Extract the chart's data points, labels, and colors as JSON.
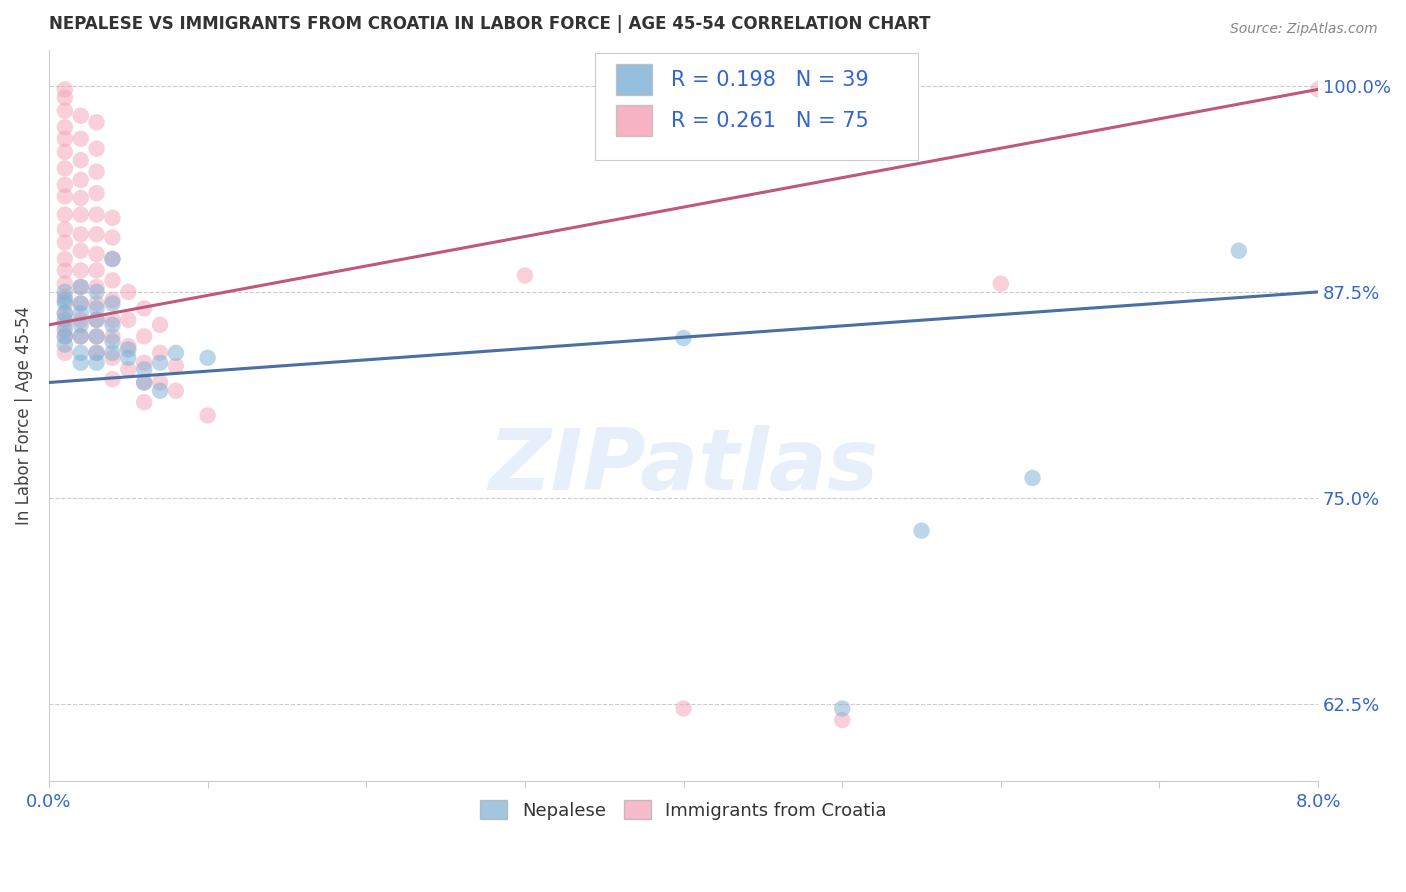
{
  "title": "NEPALESE VS IMMIGRANTS FROM CROATIA IN LABOR FORCE | AGE 45-54 CORRELATION CHART",
  "source": "Source: ZipAtlas.com",
  "ylabel": "In Labor Force | Age 45-54",
  "watermark": "ZIPatlas",
  "legend_blue_r": "0.198",
  "legend_blue_n": "39",
  "legend_pink_r": "0.261",
  "legend_pink_n": "75",
  "legend_label1": "Nepalese",
  "legend_label2": "Immigrants from Croatia",
  "blue_color": "#7BAFD4",
  "pink_color": "#F4A0B5",
  "blue_line_color": "#4A6FA5",
  "pink_line_color": "#C05878",
  "blue_scatter": [
    [
      0.001,
      0.87
    ],
    [
      0.001,
      0.875
    ],
    [
      0.001,
      0.868
    ],
    [
      0.001,
      0.862
    ],
    [
      0.001,
      0.858
    ],
    [
      0.001,
      0.852
    ],
    [
      0.001,
      0.848
    ],
    [
      0.001,
      0.843
    ],
    [
      0.002,
      0.878
    ],
    [
      0.002,
      0.868
    ],
    [
      0.002,
      0.862
    ],
    [
      0.002,
      0.855
    ],
    [
      0.002,
      0.848
    ],
    [
      0.002,
      0.838
    ],
    [
      0.002,
      0.832
    ],
    [
      0.003,
      0.875
    ],
    [
      0.003,
      0.865
    ],
    [
      0.003,
      0.858
    ],
    [
      0.003,
      0.848
    ],
    [
      0.003,
      0.838
    ],
    [
      0.003,
      0.832
    ],
    [
      0.004,
      0.895
    ],
    [
      0.004,
      0.868
    ],
    [
      0.004,
      0.855
    ],
    [
      0.004,
      0.845
    ],
    [
      0.004,
      0.838
    ],
    [
      0.005,
      0.84
    ],
    [
      0.005,
      0.835
    ],
    [
      0.006,
      0.828
    ],
    [
      0.006,
      0.82
    ],
    [
      0.007,
      0.832
    ],
    [
      0.007,
      0.815
    ],
    [
      0.008,
      0.838
    ],
    [
      0.01,
      0.835
    ],
    [
      0.04,
      0.847
    ],
    [
      0.05,
      0.622
    ],
    [
      0.055,
      0.73
    ],
    [
      0.062,
      0.762
    ],
    [
      0.075,
      0.9
    ]
  ],
  "pink_scatter": [
    [
      0.001,
      0.998
    ],
    [
      0.001,
      0.993
    ],
    [
      0.001,
      0.985
    ],
    [
      0.001,
      0.975
    ],
    [
      0.001,
      0.968
    ],
    [
      0.001,
      0.96
    ],
    [
      0.001,
      0.95
    ],
    [
      0.001,
      0.94
    ],
    [
      0.001,
      0.933
    ],
    [
      0.001,
      0.922
    ],
    [
      0.001,
      0.913
    ],
    [
      0.001,
      0.905
    ],
    [
      0.001,
      0.895
    ],
    [
      0.001,
      0.888
    ],
    [
      0.001,
      0.88
    ],
    [
      0.001,
      0.872
    ],
    [
      0.001,
      0.862
    ],
    [
      0.001,
      0.855
    ],
    [
      0.001,
      0.848
    ],
    [
      0.001,
      0.838
    ],
    [
      0.002,
      0.982
    ],
    [
      0.002,
      0.968
    ],
    [
      0.002,
      0.955
    ],
    [
      0.002,
      0.943
    ],
    [
      0.002,
      0.932
    ],
    [
      0.002,
      0.922
    ],
    [
      0.002,
      0.91
    ],
    [
      0.002,
      0.9
    ],
    [
      0.002,
      0.888
    ],
    [
      0.002,
      0.878
    ],
    [
      0.002,
      0.868
    ],
    [
      0.002,
      0.858
    ],
    [
      0.002,
      0.848
    ],
    [
      0.003,
      0.978
    ],
    [
      0.003,
      0.962
    ],
    [
      0.003,
      0.948
    ],
    [
      0.003,
      0.935
    ],
    [
      0.003,
      0.922
    ],
    [
      0.003,
      0.91
    ],
    [
      0.003,
      0.898
    ],
    [
      0.003,
      0.888
    ],
    [
      0.003,
      0.878
    ],
    [
      0.003,
      0.868
    ],
    [
      0.003,
      0.858
    ],
    [
      0.003,
      0.848
    ],
    [
      0.003,
      0.838
    ],
    [
      0.004,
      0.92
    ],
    [
      0.004,
      0.908
    ],
    [
      0.004,
      0.895
    ],
    [
      0.004,
      0.882
    ],
    [
      0.004,
      0.87
    ],
    [
      0.004,
      0.858
    ],
    [
      0.004,
      0.848
    ],
    [
      0.004,
      0.835
    ],
    [
      0.004,
      0.822
    ],
    [
      0.005,
      0.875
    ],
    [
      0.005,
      0.858
    ],
    [
      0.005,
      0.842
    ],
    [
      0.005,
      0.828
    ],
    [
      0.006,
      0.865
    ],
    [
      0.006,
      0.848
    ],
    [
      0.006,
      0.832
    ],
    [
      0.006,
      0.82
    ],
    [
      0.006,
      0.808
    ],
    [
      0.007,
      0.855
    ],
    [
      0.007,
      0.838
    ],
    [
      0.007,
      0.82
    ],
    [
      0.008,
      0.83
    ],
    [
      0.008,
      0.815
    ],
    [
      0.01,
      0.8
    ],
    [
      0.03,
      0.885
    ],
    [
      0.04,
      0.622
    ],
    [
      0.05,
      0.615
    ],
    [
      0.06,
      0.88
    ],
    [
      0.08,
      0.998
    ]
  ],
  "xmin": 0.0,
  "xmax": 0.08,
  "ymin": 0.578,
  "ymax": 1.022,
  "yticks": [
    0.625,
    0.75,
    0.875,
    1.0
  ],
  "ytick_labels": [
    "62.5%",
    "75.0%",
    "87.5%",
    "100.0%"
  ],
  "blue_line_x0": 0.0,
  "blue_line_x1": 0.08,
  "blue_line_y0": 0.82,
  "blue_line_y1": 0.875,
  "pink_line_x0": 0.0,
  "pink_line_x1": 0.08,
  "pink_line_y0": 0.855,
  "pink_line_y1": 0.998
}
